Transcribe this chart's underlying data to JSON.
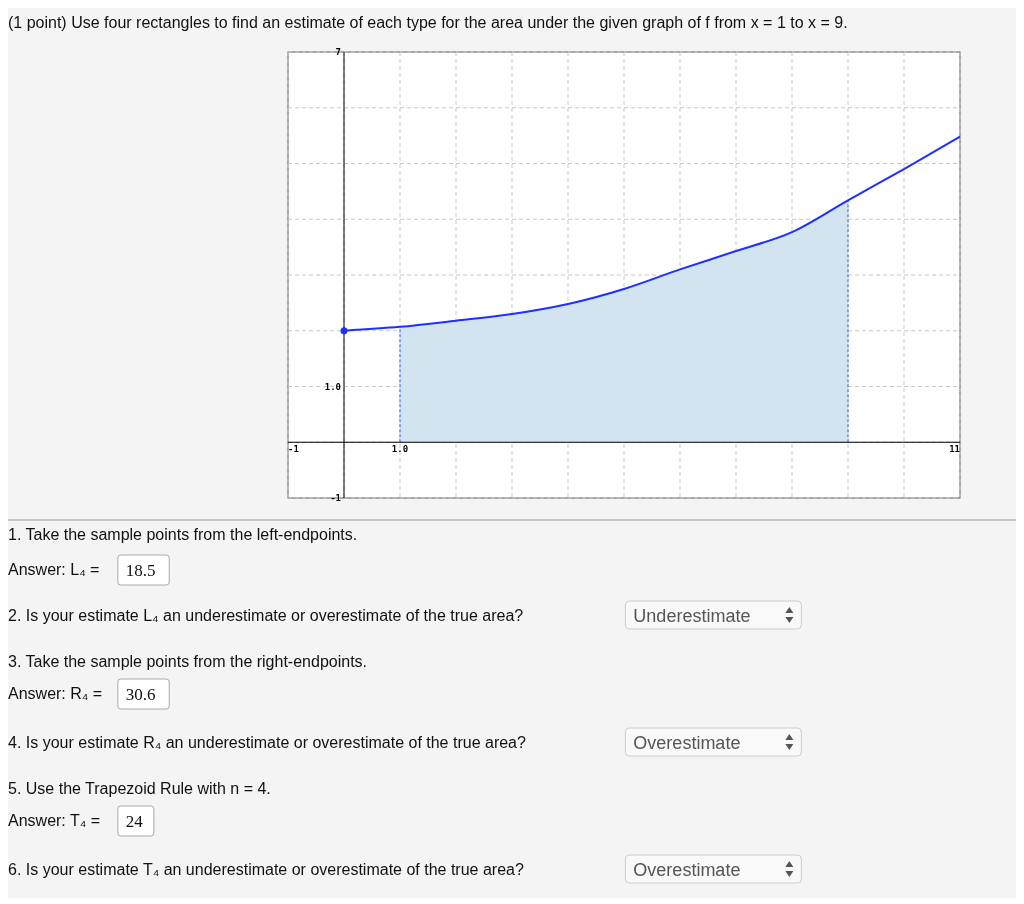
{
  "chart_data": {
    "type": "line",
    "title": "(1 point) Use four rectangles to find an estimate of each type for the area under the given graph of f from x = 1 to x = 9.",
    "xlim": [
      -1,
      11
    ],
    "ylim": [
      -1,
      7
    ],
    "xticks": [
      {
        "value": -1,
        "label": "-1"
      },
      {
        "value": 0,
        "label": null
      },
      {
        "value": 1,
        "label": "1.0"
      },
      {
        "value": 2,
        "label": null
      },
      {
        "value": 3,
        "label": null
      },
      {
        "value": 4,
        "label": null
      },
      {
        "value": 5,
        "label": null
      },
      {
        "value": 6,
        "label": null
      },
      {
        "value": 7,
        "label": null
      },
      {
        "value": 8,
        "label": null
      },
      {
        "value": 9,
        "label": null
      },
      {
        "value": 10,
        "label": null
      },
      {
        "value": 11,
        "label": "11"
      }
    ],
    "yticks": [
      {
        "value": -1,
        "label": "-1"
      },
      {
        "value": 0,
        "label": null
      },
      {
        "value": 1,
        "label": "1.0"
      },
      {
        "value": 2,
        "label": null
      },
      {
        "value": 3,
        "label": null
      },
      {
        "value": 4,
        "label": null
      },
      {
        "value": 5,
        "label": null
      },
      {
        "value": 6,
        "label": null
      },
      {
        "value": 7,
        "label": "7"
      }
    ],
    "grid": true,
    "series": [
      {
        "type": "area",
        "color": "#d3e4f1",
        "x": [
          1,
          2,
          3,
          4,
          5,
          6,
          7,
          8,
          9
        ],
        "values": [
          2.07,
          2.18,
          2.3,
          2.48,
          2.75,
          3.1,
          3.43,
          3.77,
          4.34
        ]
      },
      {
        "color": "#1f2fff",
        "x": [
          0,
          1,
          2,
          3,
          4,
          5,
          6,
          7,
          8,
          9,
          10,
          11
        ],
        "values": [
          2.0,
          2.07,
          2.18,
          2.3,
          2.48,
          2.75,
          3.1,
          3.43,
          3.77,
          4.34,
          4.9,
          5.48
        ]
      },
      {
        "type": "scatter",
        "color": "#1f2fff",
        "x": [
          0
        ],
        "values": [
          2.0
        ]
      }
    ],
    "annotations": [
      "1. Take the sample points from the left-endpoints.",
      "Answer: L₄ =",
      "18.5",
      "2. Is your estimate L₄ an underestimate or overestimate of the true area?",
      "Underestimate",
      "3. Take the sample points from the right-endpoints.",
      "Answer: R₄ =",
      "30.6",
      "4. Is your estimate R₄ an underestimate or overestimate of the true area?",
      "Overestimate",
      "5. Use the Trapezoid Rule with n = 4.",
      "Answer: T₄ =",
      "24",
      "6. Is your estimate T₄ an underestimate or overestimate of the true area?",
      "Overestimate"
    ]
  }
}
